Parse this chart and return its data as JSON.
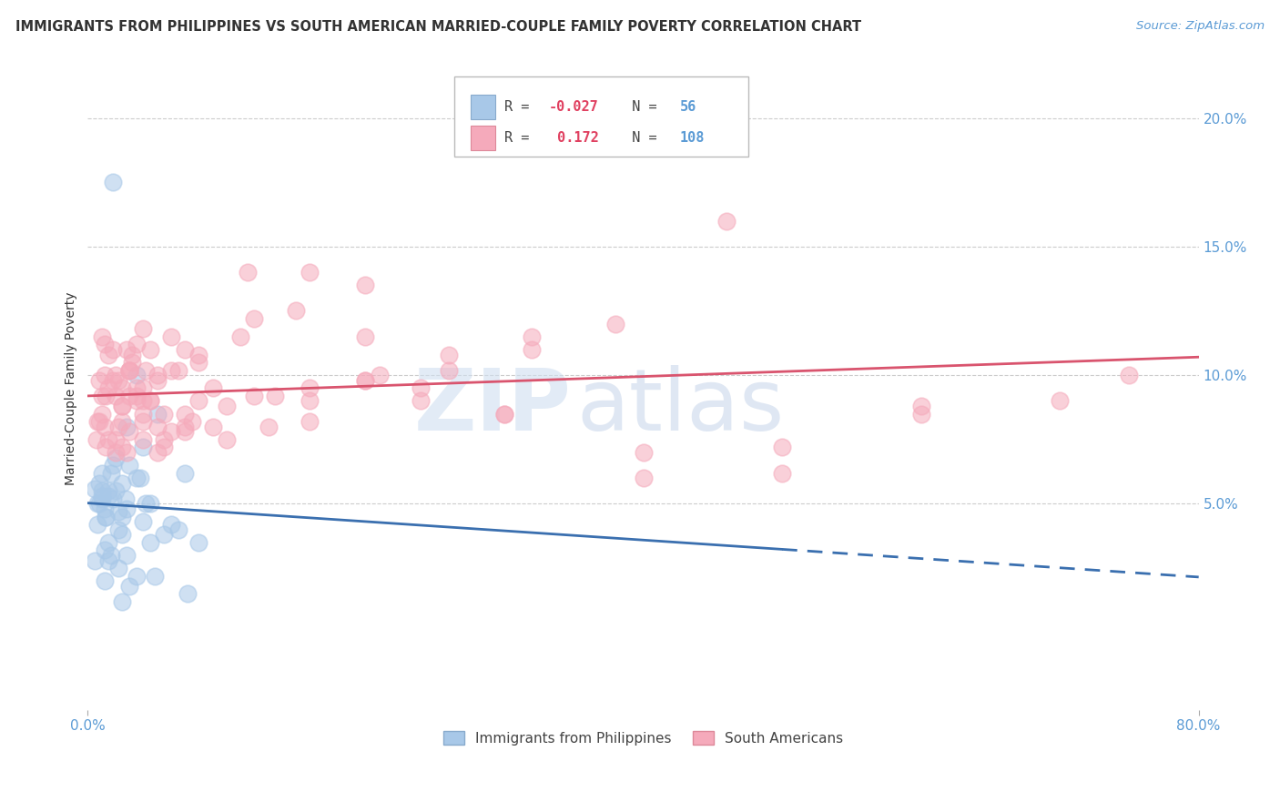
{
  "title": "IMMIGRANTS FROM PHILIPPINES VS SOUTH AMERICAN MARRIED-COUPLE FAMILY POVERTY CORRELATION CHART",
  "source": "Source: ZipAtlas.com",
  "ylabel": "Married-Couple Family Poverty",
  "xlim": [
    0,
    80
  ],
  "ylim": [
    -3,
    22
  ],
  "blue_R": -0.027,
  "blue_N": 56,
  "pink_R": 0.172,
  "pink_N": 108,
  "philippines_color": "#a8c8e8",
  "south_american_color": "#f5aabb",
  "blue_line_color": "#3a6faf",
  "pink_line_color": "#d9546e",
  "background_color": "#ffffff",
  "grid_color": "#cccccc",
  "title_color": "#333333",
  "axis_color": "#5b9bd5",
  "philippines_x": [
    1.5,
    2.5,
    1.0,
    3.0,
    1.8,
    0.8,
    1.2,
    2.8,
    4.0,
    5.0,
    2.0,
    1.5,
    2.5,
    3.5,
    0.5,
    1.0,
    1.8,
    2.2,
    1.3,
    3.8,
    6.0,
    7.0,
    0.7,
    2.8,
    4.5,
    1.7,
    1.0,
    2.2,
    3.5,
    2.5,
    1.2,
    4.0,
    6.5,
    2.0,
    1.5,
    2.7,
    0.8,
    4.5,
    8.0,
    0.7,
    1.7,
    3.0,
    4.2,
    1.2,
    2.2,
    1.3,
    5.5,
    1.0,
    2.5,
    3.5,
    0.5,
    1.5,
    2.8,
    4.8,
    7.2,
    1.8
  ],
  "philippines_y": [
    5.5,
    5.8,
    6.2,
    6.5,
    5.2,
    5.0,
    4.8,
    8.0,
    7.2,
    8.5,
    5.5,
    5.3,
    4.5,
    6.0,
    5.6,
    5.2,
    6.5,
    4.0,
    4.5,
    6.0,
    4.2,
    6.2,
    5.0,
    4.8,
    3.5,
    6.2,
    5.5,
    4.7,
    10.0,
    3.8,
    3.2,
    4.3,
    4.0,
    6.8,
    2.8,
    5.2,
    5.8,
    5.0,
    3.5,
    4.2,
    3.0,
    1.8,
    5.0,
    2.0,
    2.5,
    4.5,
    3.8,
    5.3,
    1.2,
    2.2,
    2.8,
    3.5,
    3.0,
    2.2,
    1.5,
    17.5
  ],
  "south_american_x": [
    1.0,
    1.5,
    2.0,
    2.5,
    3.0,
    0.7,
    1.2,
    3.5,
    4.0,
    5.0,
    0.8,
    1.8,
    2.5,
    3.2,
    4.2,
    6.0,
    1.3,
    2.2,
    2.8,
    5.5,
    7.0,
    1.0,
    1.5,
    3.0,
    4.5,
    0.6,
    2.0,
    3.0,
    4.0,
    7.5,
    1.2,
    2.5,
    3.5,
    5.0,
    8.0,
    0.8,
    1.8,
    2.5,
    4.0,
    6.5,
    1.3,
    2.2,
    3.2,
    4.5,
    9.0,
    1.0,
    2.0,
    3.5,
    5.5,
    10.0,
    1.5,
    2.8,
    4.0,
    6.0,
    11.5,
    2.5,
    3.5,
    5.0,
    8.0,
    13.5,
    1.2,
    3.0,
    4.5,
    7.0,
    16.0,
    2.0,
    4.0,
    6.0,
    11.0,
    20.0,
    3.0,
    5.0,
    8.0,
    15.0,
    24.0,
    4.0,
    7.0,
    12.0,
    20.0,
    30.0,
    5.5,
    9.0,
    16.0,
    26.0,
    40.0,
    7.0,
    12.0,
    21.0,
    32.0,
    50.0,
    10.0,
    16.0,
    26.0,
    40.0,
    60.0,
    13.0,
    20.0,
    32.0,
    50.0,
    70.0,
    16.0,
    24.0,
    38.0,
    60.0,
    75.0,
    20.0,
    30.0,
    46.0
  ],
  "south_american_y": [
    8.5,
    7.5,
    7.0,
    9.5,
    7.8,
    8.2,
    10.0,
    9.2,
    7.5,
    7.0,
    8.2,
    9.8,
    8.8,
    10.5,
    10.2,
    7.8,
    9.2,
    9.8,
    11.0,
    8.5,
    8.0,
    11.5,
    10.8,
    10.2,
    9.0,
    7.5,
    9.2,
    10.2,
    11.8,
    8.2,
    11.2,
    8.8,
    9.5,
    8.0,
    9.0,
    9.8,
    11.0,
    8.2,
    8.5,
    10.2,
    7.2,
    8.0,
    10.8,
    9.0,
    9.5,
    9.2,
    10.0,
    11.2,
    7.5,
    8.8,
    9.5,
    7.0,
    8.2,
    11.5,
    14.0,
    7.2,
    9.0,
    9.8,
    10.5,
    9.2,
    8.0,
    10.2,
    11.0,
    8.5,
    14.0,
    7.5,
    9.0,
    10.2,
    11.5,
    13.5,
    9.2,
    10.0,
    10.8,
    12.5,
    9.0,
    9.5,
    11.0,
    12.2,
    9.8,
    8.5,
    7.2,
    8.0,
    9.5,
    10.8,
    7.0,
    7.8,
    9.2,
    10.0,
    11.5,
    6.2,
    7.5,
    9.0,
    10.2,
    6.0,
    8.5,
    8.0,
    9.8,
    11.0,
    7.2,
    9.0,
    8.2,
    9.5,
    12.0,
    8.8,
    10.0,
    11.5,
    8.5,
    16.0
  ],
  "watermark_zip": "ZIP",
  "watermark_atlas": "atlas",
  "blue_solid_xmax": 50,
  "pink_intercept": 6.8,
  "pink_slope_total": 2.5,
  "blue_intercept": 5.3,
  "blue_slope_total": -0.4
}
